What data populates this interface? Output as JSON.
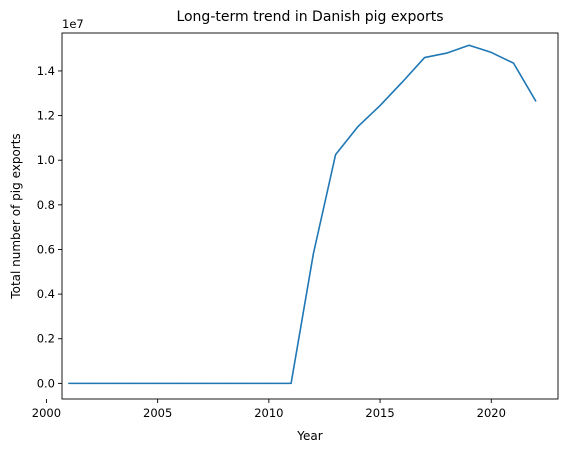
{
  "chart_data": {
    "type": "line",
    "title": "Long-term trend in Danish pig exports",
    "xlabel": "Year",
    "ylabel": "Total number of pig exports",
    "y_offset_label": "1e7",
    "xlim": [
      2000.7,
      2023.0
    ],
    "ylim": [
      -0.07,
      1.57
    ],
    "x_ticks": [
      2000,
      2005,
      2010,
      2015,
      2020
    ],
    "x_tick_labels": [
      "2000",
      "2005",
      "2010",
      "2015",
      "2020"
    ],
    "y_ticks": [
      0.0,
      0.2,
      0.4,
      0.6,
      0.8,
      1.0,
      1.2,
      1.4
    ],
    "y_tick_labels": [
      "0.0",
      "0.2",
      "0.4",
      "0.6",
      "0.8",
      "1.0",
      "1.2",
      "1.4"
    ],
    "grid": false,
    "series": [
      {
        "color": "#1f77b4",
        "x": [
          2001,
          2002,
          2003,
          2004,
          2005,
          2006,
          2007,
          2008,
          2009,
          2010,
          2011,
          2012,
          2013,
          2014,
          2015,
          2016,
          2017,
          2018,
          2019,
          2020,
          2021,
          2022
        ],
        "values": [
          0,
          0,
          0,
          0,
          0,
          0,
          0,
          0,
          0,
          0,
          0,
          0.58,
          1.025,
          1.15,
          1.245,
          1.35,
          1.46,
          1.48,
          1.515,
          1.483,
          1.435,
          1.265
        ]
      }
    ]
  }
}
